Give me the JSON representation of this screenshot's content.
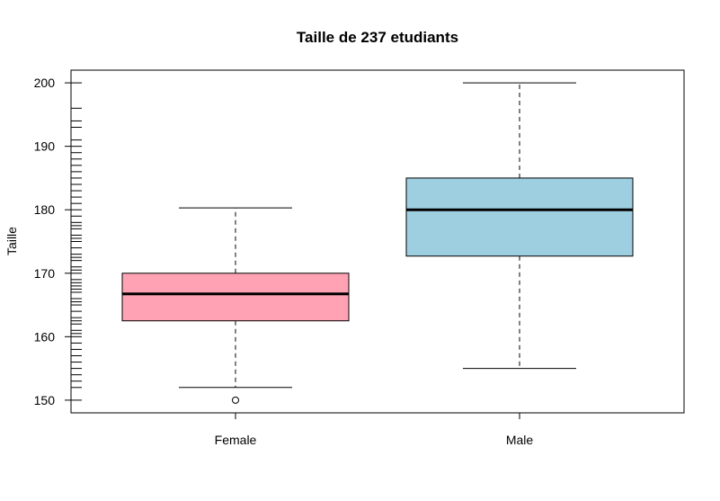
{
  "chart_data": {
    "type": "boxplot",
    "title": "Taille de 237 etudiants",
    "xlabel": "",
    "ylabel": "Taille",
    "ylim": [
      148,
      202
    ],
    "yticks": [
      150,
      160,
      170,
      180,
      190,
      200
    ],
    "grid": false,
    "rug": true,
    "groups": [
      {
        "name": "Female",
        "whisker_low": 152,
        "q1": 162.5,
        "median": 166.75,
        "q3": 170,
        "whisker_high": 180.3,
        "outliers": [
          150
        ],
        "fill": "#ffa3b4"
      },
      {
        "name": "Male",
        "whisker_low": 155,
        "q1": 172.7,
        "median": 180,
        "q3": 185,
        "whisker_high": 200,
        "outliers": [],
        "fill": "#9ecfe0"
      }
    ],
    "rug_values": [
      150,
      152,
      153,
      154,
      155,
      156,
      157,
      158,
      159,
      160,
      160.5,
      161,
      162,
      162.5,
      163,
      164,
      165,
      165.5,
      166,
      167,
      167.5,
      168,
      168.5,
      169,
      170,
      170.5,
      171,
      172,
      172.5,
      173,
      174,
      175,
      175.5,
      176,
      177,
      177.5,
      178,
      179,
      180,
      181,
      182,
      183,
      184,
      185,
      186,
      187,
      188,
      189,
      190,
      191,
      193,
      194,
      196,
      200
    ]
  }
}
